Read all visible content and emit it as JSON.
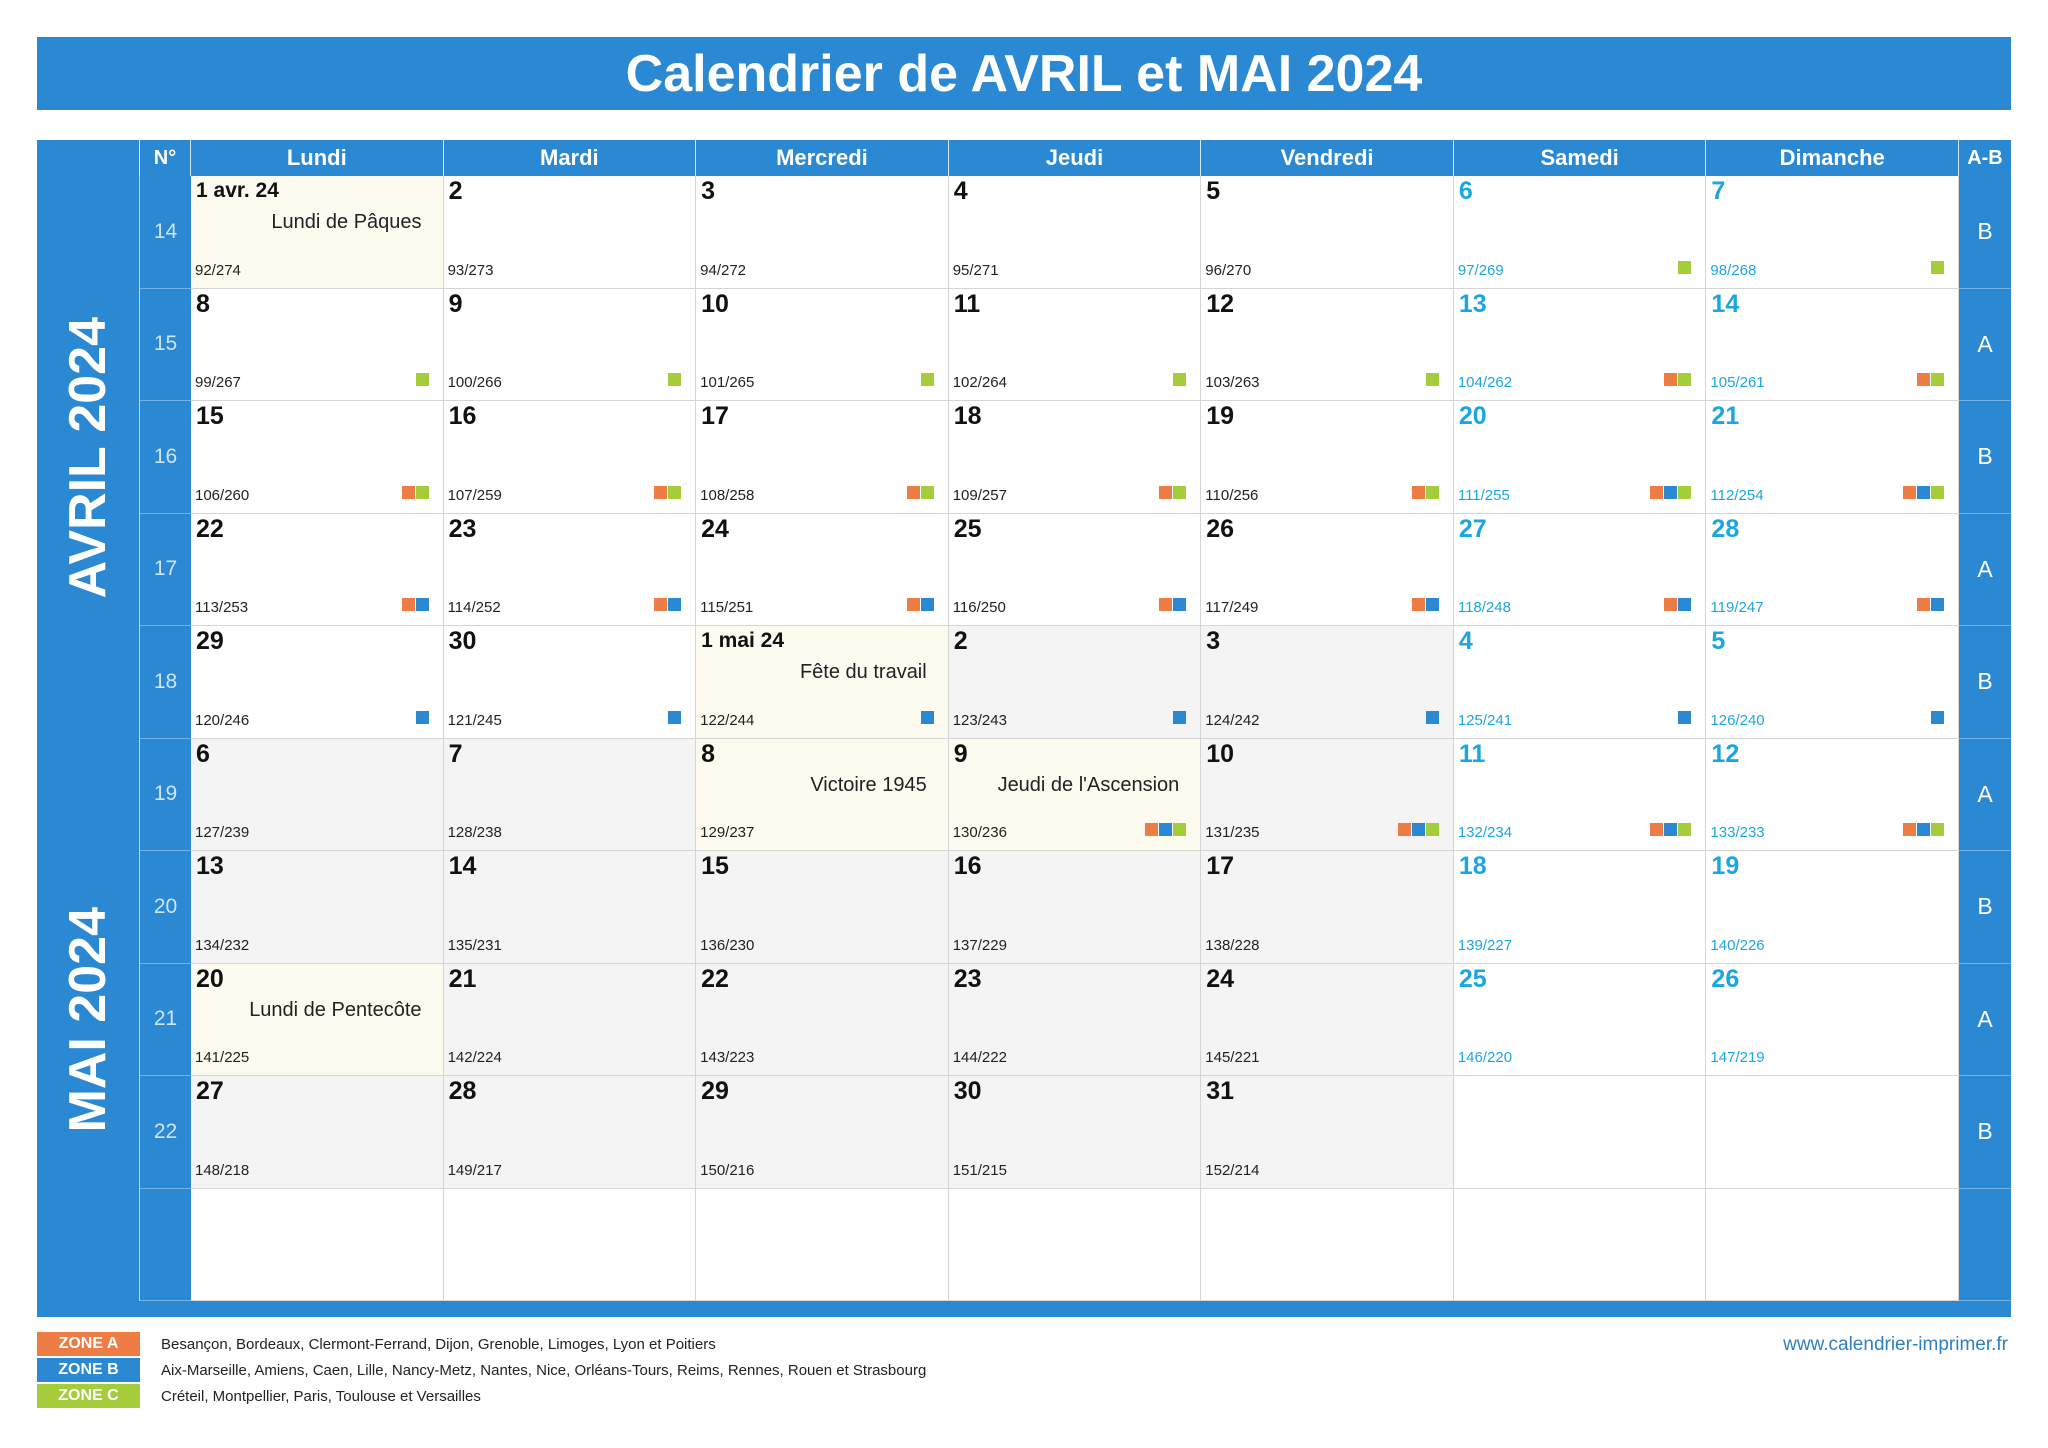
{
  "title": "Calendrier de AVRIL et MAI 2024",
  "colors": {
    "primary": "#2b88d2",
    "weekend": "#1ba6e1",
    "zone_a": "#ee7d45",
    "zone_b": "#2b88d2",
    "zone_c": "#a4cc3b",
    "holiday_bg": "#fdfaef",
    "shaded_bg": "#f4f4f4",
    "grid_line": "#d5d5d5",
    "link": "#2f7fc1"
  },
  "header": {
    "week_number": "N°",
    "days": [
      "Lundi",
      "Mardi",
      "Mercredi",
      "Jeudi",
      "Vendredi",
      "Samedi",
      "Dimanche"
    ],
    "ab": "A-B"
  },
  "months": [
    "AVRIL 2024",
    "MAI 2024"
  ],
  "weeks": [
    {
      "number": "14",
      "ab": "B",
      "days": [
        {
          "label": "1 avr. 24",
          "holiday": "Lundi de Pâques",
          "day_of_year": "92/274"
        },
        {
          "label": "2",
          "day_of_year": "93/273"
        },
        {
          "label": "3",
          "day_of_year": "94/272"
        },
        {
          "label": "4",
          "day_of_year": "95/271"
        },
        {
          "label": "5",
          "day_of_year": "96/270"
        },
        {
          "label": "6",
          "day_of_year": "97/269",
          "zones": {
            "C": true
          }
        },
        {
          "label": "7",
          "day_of_year": "98/268",
          "zones": {
            "C": true
          }
        }
      ]
    },
    {
      "number": "15",
      "ab": "A",
      "days": [
        {
          "label": "8",
          "day_of_year": "99/267",
          "zones": {
            "C": true
          }
        },
        {
          "label": "9",
          "day_of_year": "100/266",
          "zones": {
            "C": true
          }
        },
        {
          "label": "10",
          "day_of_year": "101/265",
          "zones": {
            "C": true
          }
        },
        {
          "label": "11",
          "day_of_year": "102/264",
          "zones": {
            "C": true
          }
        },
        {
          "label": "12",
          "day_of_year": "103/263",
          "zones": {
            "C": true
          }
        },
        {
          "label": "13",
          "day_of_year": "104/262",
          "zones": {
            "A": true,
            "C": true
          }
        },
        {
          "label": "14",
          "day_of_year": "105/261",
          "zones": {
            "A": true,
            "C": true
          }
        }
      ]
    },
    {
      "number": "16",
      "ab": "B",
      "days": [
        {
          "label": "15",
          "day_of_year": "106/260",
          "zones": {
            "A": true,
            "C": true
          }
        },
        {
          "label": "16",
          "day_of_year": "107/259",
          "zones": {
            "A": true,
            "C": true
          }
        },
        {
          "label": "17",
          "day_of_year": "108/258",
          "zones": {
            "A": true,
            "C": true
          }
        },
        {
          "label": "18",
          "day_of_year": "109/257",
          "zones": {
            "A": true,
            "C": true
          }
        },
        {
          "label": "19",
          "day_of_year": "110/256",
          "zones": {
            "A": true,
            "C": true
          }
        },
        {
          "label": "20",
          "day_of_year": "111/255",
          "zones": {
            "A": true,
            "B": true,
            "C": true
          }
        },
        {
          "label": "21",
          "day_of_year": "112/254",
          "zones": {
            "A": true,
            "B": true,
            "C": true
          }
        }
      ]
    },
    {
      "number": "17",
      "ab": "A",
      "days": [
        {
          "label": "22",
          "day_of_year": "113/253",
          "zones": {
            "A": true,
            "B": true
          }
        },
        {
          "label": "23",
          "day_of_year": "114/252",
          "zones": {
            "A": true,
            "B": true
          }
        },
        {
          "label": "24",
          "day_of_year": "115/251",
          "zones": {
            "A": true,
            "B": true
          }
        },
        {
          "label": "25",
          "day_of_year": "116/250",
          "zones": {
            "A": true,
            "B": true
          }
        },
        {
          "label": "26",
          "day_of_year": "117/249",
          "zones": {
            "A": true,
            "B": true
          }
        },
        {
          "label": "27",
          "day_of_year": "118/248",
          "zones": {
            "A": true,
            "B": true
          }
        },
        {
          "label": "28",
          "day_of_year": "119/247",
          "zones": {
            "A": true,
            "B": true
          }
        }
      ]
    },
    {
      "number": "18",
      "ab": "B",
      "days": [
        {
          "label": "29",
          "day_of_year": "120/246",
          "zones": {
            "B": true
          }
        },
        {
          "label": "30",
          "day_of_year": "121/245",
          "zones": {
            "B": true
          }
        },
        {
          "label": "1 mai 24",
          "holiday": "Fête du travail",
          "day_of_year": "122/244",
          "zones": {
            "B": true
          }
        },
        {
          "label": "2",
          "day_of_year": "123/243",
          "zones": {
            "B": true
          },
          "shaded": true
        },
        {
          "label": "3",
          "day_of_year": "124/242",
          "zones": {
            "B": true
          },
          "shaded": true
        },
        {
          "label": "4",
          "day_of_year": "125/241",
          "zones": {
            "B": true
          }
        },
        {
          "label": "5",
          "day_of_year": "126/240",
          "zones": {
            "B": true
          }
        }
      ]
    },
    {
      "number": "19",
      "ab": "A",
      "days": [
        {
          "label": "6",
          "day_of_year": "127/239",
          "shaded": true
        },
        {
          "label": "7",
          "day_of_year": "128/238",
          "shaded": true
        },
        {
          "label": "8",
          "holiday": "Victoire 1945",
          "day_of_year": "129/237"
        },
        {
          "label": "9",
          "holiday": "Jeudi de l'Ascension",
          "day_of_year": "130/236",
          "zones": {
            "A": true,
            "B": true,
            "C": true
          }
        },
        {
          "label": "10",
          "day_of_year": "131/235",
          "zones": {
            "A": true,
            "B": true,
            "C": true
          },
          "shaded": true
        },
        {
          "label": "11",
          "day_of_year": "132/234",
          "zones": {
            "A": true,
            "B": true,
            "C": true
          }
        },
        {
          "label": "12",
          "day_of_year": "133/233",
          "zones": {
            "A": true,
            "B": true,
            "C": true
          }
        }
      ]
    },
    {
      "number": "20",
      "ab": "B",
      "days": [
        {
          "label": "13",
          "day_of_year": "134/232",
          "shaded": true
        },
        {
          "label": "14",
          "day_of_year": "135/231",
          "shaded": true
        },
        {
          "label": "15",
          "day_of_year": "136/230",
          "shaded": true
        },
        {
          "label": "16",
          "day_of_year": "137/229",
          "shaded": true
        },
        {
          "label": "17",
          "day_of_year": "138/228",
          "shaded": true
        },
        {
          "label": "18",
          "day_of_year": "139/227"
        },
        {
          "label": "19",
          "day_of_year": "140/226"
        }
      ]
    },
    {
      "number": "21",
      "ab": "A",
      "days": [
        {
          "label": "20",
          "holiday": "Lundi de Pentecôte",
          "day_of_year": "141/225"
        },
        {
          "label": "21",
          "day_of_year": "142/224",
          "shaded": true
        },
        {
          "label": "22",
          "day_of_year": "143/223",
          "shaded": true
        },
        {
          "label": "23",
          "day_of_year": "144/222",
          "shaded": true
        },
        {
          "label": "24",
          "day_of_year": "145/221",
          "shaded": true
        },
        {
          "label": "25",
          "day_of_year": "146/220"
        },
        {
          "label": "26",
          "day_of_year": "147/219"
        }
      ]
    },
    {
      "number": "22",
      "ab": "B",
      "days": [
        {
          "label": "27",
          "day_of_year": "148/218",
          "shaded": true
        },
        {
          "label": "28",
          "day_of_year": "149/217",
          "shaded": true
        },
        {
          "label": "29",
          "day_of_year": "150/216",
          "shaded": true
        },
        {
          "label": "30",
          "day_of_year": "151/215",
          "shaded": true
        },
        {
          "label": "31",
          "day_of_year": "152/214",
          "shaded": true
        },
        null,
        null
      ]
    },
    {
      "number": "",
      "ab": "",
      "days": [
        null,
        null,
        null,
        null,
        null,
        null,
        null
      ]
    }
  ],
  "legend": [
    {
      "zone": "ZONE A",
      "academies": "Besançon, Bordeaux, Clermont-Ferrand, Dijon, Grenoble, Limoges, Lyon et Poitiers"
    },
    {
      "zone": "ZONE B",
      "academies": "Aix-Marseille, Amiens, Caen, Lille, Nancy-Metz, Nantes, Nice, Orléans-Tours, Reims, Rennes, Rouen et Strasbourg"
    },
    {
      "zone": "ZONE C",
      "academies": "Créteil, Montpellier, Paris, Toulouse et Versailles"
    }
  ],
  "website": "www.calendrier-imprimer.fr"
}
